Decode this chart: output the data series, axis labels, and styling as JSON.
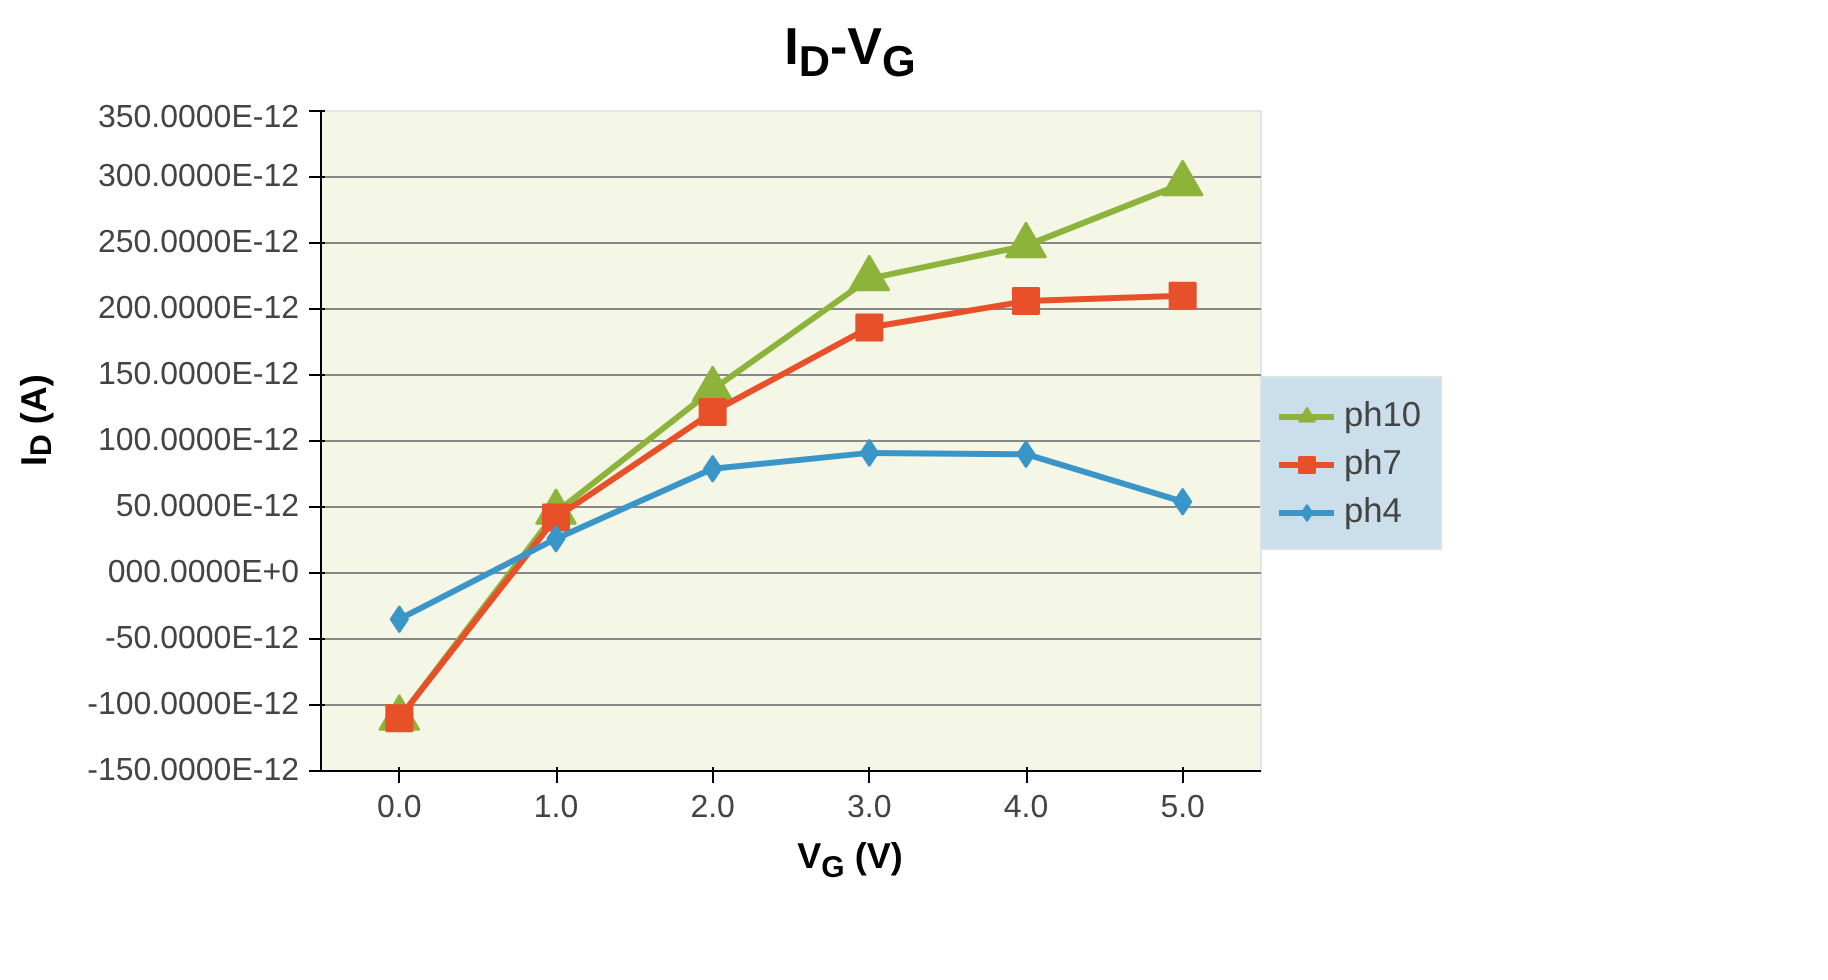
{
  "chart_data": {
    "type": "line",
    "title": "I$_{D}$-V$_{G}$",
    "xlabel": "V$_{G}$ (V)",
    "ylabel": "I$_{D}$ (A)",
    "categories": [
      "0.0",
      "1.0",
      "2.0",
      "3.0",
      "4.0",
      "5.0"
    ],
    "series": [
      {
        "name": "ph10",
        "color": "#8db33a",
        "marker": "triangle",
        "values": [
          -1.1e-10,
          4.6e-11,
          1.39e-10,
          2.23e-10,
          2.48e-10,
          2.95e-10
        ]
      },
      {
        "name": "ph7",
        "color": "#e8502a",
        "marker": "square",
        "values": [
          -1.1e-10,
          4.2e-11,
          1.22e-10,
          1.86e-10,
          2.06e-10,
          2.1e-10
        ]
      },
      {
        "name": "ph4",
        "color": "#3a96c8",
        "marker": "diamond",
        "values": [
          -3.5e-11,
          2.6e-11,
          7.9e-11,
          9.1e-11,
          9e-11,
          5.4e-11
        ]
      }
    ],
    "ylim": [
      -1.5e-10,
      3.5e-10
    ],
    "yticks": [
      {
        "value": -1.5e-10,
        "label": "-150.0000E-12"
      },
      {
        "value": -1e-10,
        "label": "-100.0000E-12"
      },
      {
        "value": -5e-11,
        "label": "-50.0000E-12"
      },
      {
        "value": 0,
        "label": "000.0000E+0"
      },
      {
        "value": 5e-11,
        "label": "50.0000E-12"
      },
      {
        "value": 1e-10,
        "label": "100.0000E-12"
      },
      {
        "value": 1.5e-10,
        "label": "150.0000E-12"
      },
      {
        "value": 2e-10,
        "label": "200.0000E-12"
      },
      {
        "value": 2.5e-10,
        "label": "250.0000E-12"
      },
      {
        "value": 3e-10,
        "label": "300.0000E-12"
      },
      {
        "value": 3.5e-10,
        "label": "350.0000E-12"
      }
    ],
    "grid": "y",
    "legend": "right",
    "line_style": "solid"
  }
}
